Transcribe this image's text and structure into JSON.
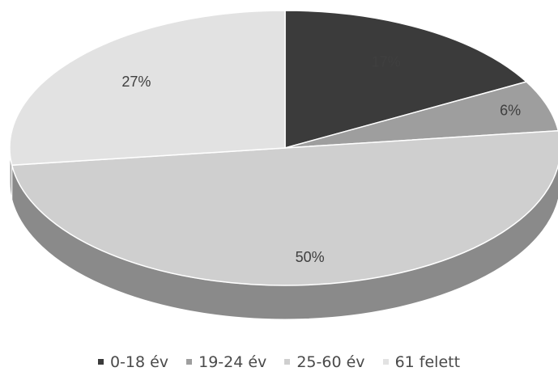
{
  "chart_data": {
    "type": "pie",
    "categories": [
      "0-18 év",
      "19-24 év",
      "25-60 év",
      "61 felett"
    ],
    "values": [
      17,
      6,
      50,
      27
    ],
    "data_labels": [
      "17%",
      "6%",
      "50%",
      "27%"
    ],
    "colors": [
      "#3b3b3b",
      "#9e9e9e",
      "#cfcfcf",
      "#e2e2e2"
    ],
    "side_colors": [
      "#262626",
      "#707070",
      "#8a8a8a",
      "#a3a3a3"
    ],
    "style": "3d",
    "legend_position": "bottom"
  }
}
